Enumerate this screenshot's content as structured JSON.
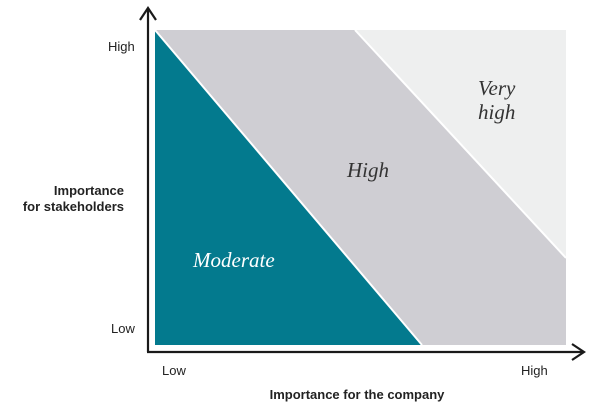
{
  "diagram": {
    "x_axis": {
      "title": "Importance for the company",
      "low_label": "Low",
      "high_label": "High"
    },
    "y_axis": {
      "title_line1": "Importance",
      "title_line2": "for stakeholders",
      "low_label": "Low",
      "high_label": "High"
    },
    "regions": {
      "moderate": {
        "label": "Moderate",
        "color": "#037a8e",
        "text_color": "#ffffff"
      },
      "high": {
        "label": "High",
        "color": "#cfced3",
        "text_color": "#333333"
      },
      "very_high": {
        "label_line1": "Very",
        "label_line2": "high",
        "color": "#eeefef",
        "text_color": "#333333"
      }
    },
    "axis_color": "#1a1a1a"
  }
}
